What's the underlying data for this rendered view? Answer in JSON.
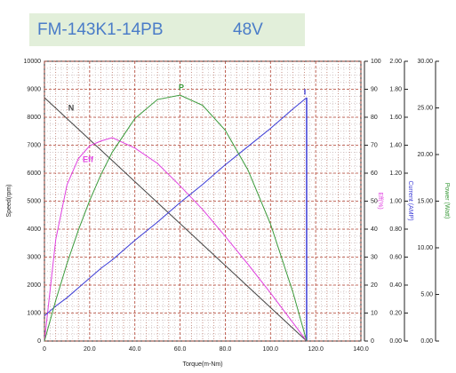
{
  "chart_data": {
    "type": "line",
    "title": "FM-143K1-14PB",
    "subtitle": "48V",
    "x_label": "Torque(m-Nm)",
    "y_label": "Speed(rpm)",
    "y2_label": "Eff(%)",
    "y3_label": "Current (AMP)",
    "y4_label": "Power (Watt)",
    "grid": true,
    "x": [
      0,
      5,
      10,
      15,
      20,
      25,
      30,
      40,
      50,
      60,
      70,
      80,
      90,
      100,
      110,
      116
    ],
    "series": [
      {
        "name": "N",
        "color": "#444444",
        "axis": "y",
        "values": [
          8700,
          8325,
          7950,
          7575,
          7200,
          6825,
          6450,
          5700,
          4950,
          4200,
          3450,
          2700,
          1950,
          1200,
          450,
          0
        ]
      },
      {
        "name": "Eff",
        "color": "#e040e0",
        "axis": "y2",
        "values": [
          0,
          36.3,
          55.9,
          65.2,
          69.8,
          71.5,
          72.7,
          69.0,
          63.5,
          55.5,
          47.0,
          37.4,
          27.5,
          17.2,
          6.5,
          0
        ]
      },
      {
        "name": "I",
        "color": "#3b3bd6",
        "axis": "y3",
        "values": [
          0.18,
          0.25,
          0.31,
          0.38,
          0.45,
          0.52,
          0.58,
          0.72,
          0.85,
          0.99,
          1.12,
          1.26,
          1.39,
          1.52,
          1.66,
          1.74
        ]
      },
      {
        "name": "P",
        "color": "#3a9a3a",
        "axis": "y4",
        "values": [
          0,
          4.36,
          8.32,
          11.89,
          15.07,
          17.85,
          20.25,
          23.86,
          25.9,
          26.37,
          25.27,
          22.6,
          18.36,
          12.56,
          5.18,
          0
        ]
      }
    ],
    "xlim": [
      0,
      140
    ],
    "xticks": [
      0,
      {
        "value": 20,
        "label": "20.0"
      },
      {
        "value": 40,
        "label": "40.0"
      },
      {
        "value": 60,
        "label": "60.0"
      },
      {
        "value": 80,
        "label": "80.0"
      },
      {
        "value": 100,
        "label": "100.0"
      },
      {
        "value": 120,
        "label": "120.0"
      },
      {
        "value": 140,
        "label": "140.0"
      }
    ],
    "ylim": [
      0,
      10000
    ],
    "yticks": [
      0,
      1000,
      2000,
      3000,
      4000,
      5000,
      6000,
      7000,
      8000,
      9000,
      10000
    ],
    "y2lim": [
      0,
      100
    ],
    "y2ticks": [
      0,
      10,
      20,
      30,
      40,
      50,
      60,
      70,
      80,
      90,
      100
    ],
    "y3lim": [
      0,
      2
    ],
    "y3ticks": [
      {
        "value": 0,
        "label": "0.00"
      },
      {
        "value": 0.2,
        "label": "0.20"
      },
      {
        "value": 0.4,
        "label": "0.40"
      },
      {
        "value": 0.6,
        "label": "0.60"
      },
      {
        "value": 0.8,
        "label": "0.80"
      },
      {
        "value": 1,
        "label": "1.00"
      },
      {
        "value": 1.2,
        "label": "1.20"
      },
      {
        "value": 1.4,
        "label": "1.40"
      },
      {
        "value": 1.6,
        "label": "1.60"
      },
      {
        "value": 1.8,
        "label": "1.80"
      },
      {
        "value": 2,
        "label": "2.00"
      }
    ],
    "y4lim": [
      0,
      30
    ],
    "y4ticks": [
      {
        "value": 0,
        "label": "0.00"
      },
      {
        "value": 5,
        "label": "5.00"
      },
      {
        "value": 10,
        "label": "10.00"
      },
      {
        "value": 15,
        "label": "15.00"
      },
      {
        "value": 20,
        "label": "20.00"
      },
      {
        "value": 25,
        "label": "25.00"
      },
      {
        "value": 30,
        "label": "30.00"
      }
    ]
  }
}
